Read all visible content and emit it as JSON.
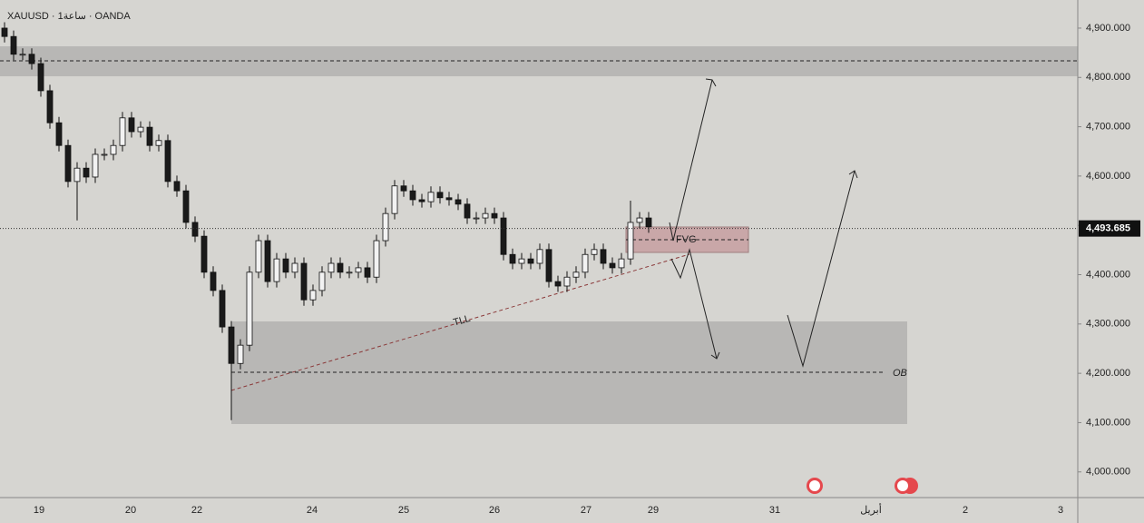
{
  "chart_data": {
    "type": "candlestick",
    "title": "XAUUSD · 1ساعة · OANDA",
    "x_labels": [
      "19",
      "20",
      "22",
      "24",
      "25",
      "26",
      "27",
      "29",
      "31",
      "أبريل",
      "2",
      "3"
    ],
    "open": [
      4900,
      4883,
      4847,
      4847,
      4828,
      4773,
      4708,
      4662,
      4589,
      4616,
      4598,
      4644,
      4644,
      4662,
      4718,
      4690,
      4699,
      4662,
      4672,
      4589,
      4570,
      4506,
      4478,
      4405,
      4368,
      4294,
      4220,
      4257,
      4405,
      4469,
      4386,
      4432,
      4405,
      4423,
      4349,
      4368,
      4405,
      4423,
      4405,
      4405,
      4414,
      4395,
      4469,
      4524,
      4580,
      4570,
      4552,
      4548,
      4567,
      4556,
      4552,
      4543,
      4515,
      4515,
      4524,
      4515,
      4441,
      4423,
      4432,
      4423,
      4451,
      4386,
      4377,
      4395,
      4405,
      4441,
      4451,
      4423,
      4414,
      4432,
      4506,
      4515
    ],
    "high": [
      4912,
      4895,
      4859,
      4859,
      4840,
      4785,
      4720,
      4674,
      4628,
      4628,
      4656,
      4656,
      4674,
      4730,
      4730,
      4711,
      4711,
      4684,
      4684,
      4601,
      4582,
      4518,
      4490,
      4417,
      4380,
      4306,
      4269,
      4417,
      4481,
      4481,
      4444,
      4444,
      4435,
      4435,
      4380,
      4417,
      4435,
      4435,
      4417,
      4426,
      4426,
      4481,
      4536,
      4592,
      4592,
      4582,
      4564,
      4579,
      4579,
      4568,
      4564,
      4555,
      4527,
      4536,
      4536,
      4527,
      4453,
      4444,
      4444,
      4463,
      4463,
      4398,
      4407,
      4417,
      4453,
      4463,
      4463,
      4435,
      4444,
      4550,
      4527,
      4527
    ],
    "low": [
      4871,
      4835,
      4835,
      4816,
      4761,
      4696,
      4650,
      4577,
      4510,
      4586,
      4586,
      4632,
      4632,
      4650,
      4678,
      4678,
      4650,
      4650,
      4577,
      4558,
      4494,
      4466,
      4393,
      4356,
      4282,
      4105,
      4208,
      4245,
      4393,
      4374,
      4374,
      4393,
      4393,
      4337,
      4337,
      4356,
      4393,
      4393,
      4393,
      4393,
      4383,
      4383,
      4457,
      4512,
      4558,
      4540,
      4536,
      4536,
      4544,
      4540,
      4531,
      4503,
      4503,
      4503,
      4503,
      4429,
      4411,
      4411,
      4411,
      4411,
      4374,
      4365,
      4365,
      4383,
      4393,
      4429,
      4411,
      4402,
      4402,
      4420,
      4494,
      4485
    ],
    "close": [
      4883,
      4847,
      4847,
      4828,
      4773,
      4708,
      4662,
      4589,
      4616,
      4598,
      4644,
      4644,
      4662,
      4718,
      4690,
      4699,
      4662,
      4672,
      4589,
      4570,
      4506,
      4478,
      4405,
      4368,
      4294,
      4220,
      4257,
      4405,
      4469,
      4386,
      4432,
      4405,
      4423,
      4349,
      4368,
      4405,
      4423,
      4405,
      4405,
      4414,
      4395,
      4469,
      4524,
      4580,
      4570,
      4552,
      4548,
      4567,
      4556,
      4552,
      4543,
      4515,
      4515,
      4524,
      4515,
      4441,
      4423,
      4432,
      4423,
      4451,
      4386,
      4377,
      4395,
      4405,
      4441,
      4451,
      4423,
      4414,
      4432,
      4506,
      4515,
      4497
    ],
    "ylim": [
      3948,
      4957
    ],
    "yticks": [
      {
        "value": 4000,
        "label": "4,000.000"
      },
      {
        "value": 4100,
        "label": "4,100.000"
      },
      {
        "value": 4200,
        "label": "4,200.000"
      },
      {
        "value": 4300,
        "label": "4,300.000"
      },
      {
        "value": 4400,
        "label": "4,400.000"
      },
      {
        "value": 4500,
        "label": "4,500.000"
      },
      {
        "value": 4600,
        "label": "4,600.000"
      },
      {
        "value": 4700,
        "label": "4,700.000"
      },
      {
        "value": 4800,
        "label": "4,800.000"
      },
      {
        "value": 4900,
        "label": "4,900.000"
      }
    ],
    "last_price": {
      "value": 4493.685,
      "label": "4,493.685"
    },
    "annotations": [
      "FVG",
      "TLL",
      "OB"
    ]
  }
}
